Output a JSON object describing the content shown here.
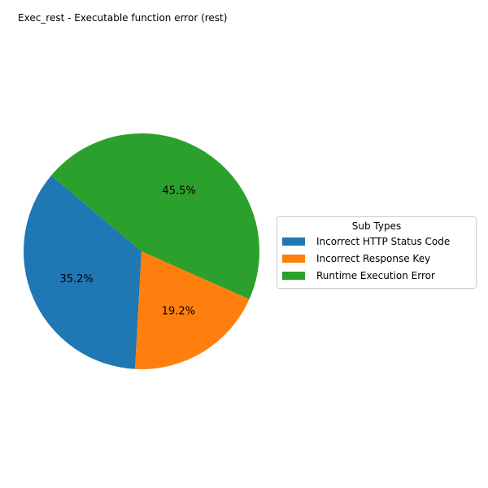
{
  "chart_data": {
    "type": "pie",
    "title": "Exec_rest - Executable function error (rest)",
    "categories": [
      "Incorrect HTTP Status Code",
      "Incorrect Response Key",
      "Runtime Execution Error"
    ],
    "values": [
      35.2,
      19.2,
      45.5
    ],
    "labels": [
      "35.2%",
      "19.2%",
      "45.5%"
    ],
    "colors": [
      "#1f77b4",
      "#ff7f0e",
      "#2ca02c"
    ],
    "start_angle_deg": 140,
    "direction": "counterclockwise",
    "legend": {
      "title": "Sub Types",
      "placement": "center-right",
      "entries": [
        "Incorrect HTTP Status Code",
        "Incorrect Response Key",
        "Runtime Execution Error"
      ]
    }
  }
}
